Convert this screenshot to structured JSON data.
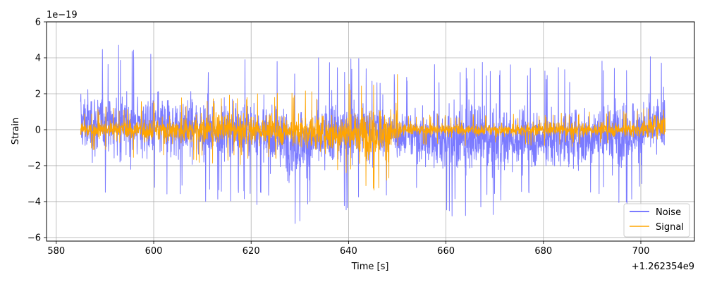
{
  "chart_data": {
    "type": "line",
    "xlabel": "Time [s]",
    "ylabel": "Strain",
    "x_offset_label": "+1.262354e9",
    "y_scale_label": "1e−19",
    "xlim": [
      578,
      711
    ],
    "ylim": [
      -6.2,
      6.0
    ],
    "xticks": [
      580,
      600,
      620,
      640,
      660,
      680,
      700
    ],
    "xtick_labels": [
      "580",
      "600",
      "620",
      "640",
      "660",
      "680",
      "700"
    ],
    "yticks": [
      -6,
      -4,
      -2,
      0,
      2,
      4,
      6
    ],
    "ytick_labels": [
      "−6",
      "−4",
      "−2",
      "0",
      "2",
      "4",
      "6"
    ],
    "grid": true,
    "legend_position": "lower-right",
    "series": [
      {
        "name": "Noise",
        "color": "#7b7bff",
        "x_range": [
          585,
          705
        ],
        "envelope_x": [
          585,
          600,
          620,
          630,
          640,
          650,
          660,
          680,
          700,
          705
        ],
        "envelope_y_max": [
          5.0,
          4.5,
          4.0,
          4.0,
          4.2,
          3.2,
          4.0,
          3.5,
          4.2,
          4.0
        ],
        "envelope_y_min": [
          -4.2,
          -4.2,
          -4.0,
          -5.6,
          -4.5,
          -3.5,
          -5.0,
          -4.6,
          -4.3,
          -3.5
        ]
      },
      {
        "name": "Signal",
        "color": "#ffa500",
        "x_range": [
          585,
          705
        ],
        "envelope_x": [
          585,
          600,
          620,
          630,
          640,
          648,
          650,
          651,
          660,
          680,
          700,
          705
        ],
        "envelope_y_max": [
          1.0,
          1.8,
          2.0,
          2.2,
          2.6,
          3.4,
          3.2,
          0.8,
          0.9,
          0.9,
          1.1,
          2.4
        ],
        "envelope_y_min": [
          -1.0,
          -1.8,
          -2.0,
          -2.4,
          -3.0,
          -3.8,
          -3.4,
          -0.8,
          -0.9,
          -0.9,
          -1.1,
          -1.6
        ]
      }
    ]
  }
}
